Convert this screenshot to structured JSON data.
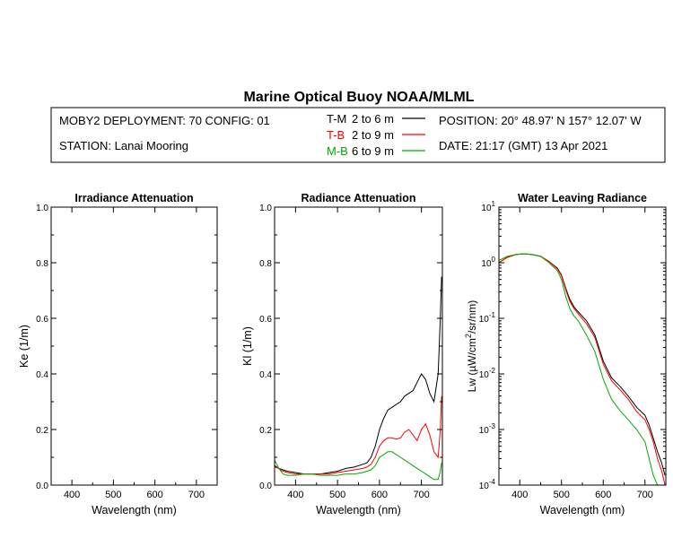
{
  "title": "Marine Optical Buoy NOAA/MLML",
  "info": {
    "deployment": "MOBY2 DEPLOYMENT: 70 CONFIG: 01",
    "station": "STATION: Lanai Mooring",
    "position": "POSITION: 20° 48.97' N   157° 12.07' W",
    "date": "DATE: 21:17 (GMT) 13 Apr 2021",
    "legend": [
      {
        "code": "T-M",
        "range": "2 to 6  m",
        "color": "#000000"
      },
      {
        "code": "T-B",
        "range": "2 to 9  m",
        "color": "#ff0000"
      },
      {
        "code": "M-B",
        "range": "6 to 9  m",
        "color": "#00aa00"
      }
    ]
  },
  "colors": {
    "tm": "#000000",
    "tb": "#ff0000",
    "mb": "#00aa00"
  },
  "chart_data": [
    {
      "type": "line",
      "title": "Irradiance Attenuation",
      "xlabel": "Wavelength (nm)",
      "ylabel": "Ke  (1/m)",
      "xlim": [
        350,
        750
      ],
      "ylim": [
        0,
        1.0
      ],
      "xticks": [
        "400",
        "500",
        "600",
        "700"
      ],
      "yticks": [
        "0.0",
        "0.2",
        "0.4",
        "0.6",
        "0.8",
        "1.0"
      ],
      "series": []
    },
    {
      "type": "line",
      "title": "Radiance Attenuation",
      "xlabel": "Wavelength (nm)",
      "ylabel": "Kl  (1/m)",
      "xlim": [
        350,
        750
      ],
      "ylim": [
        0,
        1.0
      ],
      "xticks": [
        "400",
        "500",
        "600",
        "700"
      ],
      "yticks": [
        "0.0",
        "0.2",
        "0.4",
        "0.6",
        "0.8",
        "1.0"
      ],
      "series": [
        {
          "name": "T-M",
          "x": [
            350,
            360,
            370,
            380,
            400,
            420,
            440,
            460,
            480,
            500,
            520,
            540,
            560,
            570,
            580,
            590,
            600,
            610,
            620,
            630,
            640,
            650,
            660,
            670,
            680,
            690,
            700,
            710,
            720,
            730,
            740,
            745,
            748
          ],
          "y": [
            0.07,
            0.06,
            0.055,
            0.05,
            0.045,
            0.04,
            0.04,
            0.04,
            0.045,
            0.05,
            0.06,
            0.065,
            0.075,
            0.08,
            0.1,
            0.14,
            0.2,
            0.24,
            0.27,
            0.28,
            0.29,
            0.3,
            0.32,
            0.33,
            0.34,
            0.37,
            0.4,
            0.38,
            0.33,
            0.3,
            0.4,
            0.6,
            0.75
          ]
        },
        {
          "name": "T-B",
          "x": [
            350,
            360,
            370,
            380,
            400,
            420,
            440,
            460,
            480,
            500,
            520,
            540,
            560,
            570,
            580,
            590,
            600,
            610,
            620,
            630,
            640,
            650,
            660,
            670,
            680,
            690,
            700,
            710,
            720,
            730,
            740,
            745,
            748
          ],
          "y": [
            0.065,
            0.06,
            0.05,
            0.045,
            0.04,
            0.04,
            0.04,
            0.04,
            0.04,
            0.045,
            0.05,
            0.055,
            0.06,
            0.065,
            0.075,
            0.1,
            0.14,
            0.16,
            0.17,
            0.17,
            0.165,
            0.17,
            0.19,
            0.2,
            0.18,
            0.16,
            0.2,
            0.22,
            0.18,
            0.12,
            0.1,
            0.2,
            0.32
          ]
        },
        {
          "name": "M-B",
          "x": [
            350,
            360,
            370,
            380,
            400,
            420,
            440,
            460,
            480,
            500,
            520,
            540,
            560,
            570,
            580,
            590,
            600,
            610,
            620,
            630,
            640,
            650,
            660,
            670,
            680,
            690,
            700,
            710,
            720,
            730,
            740,
            745,
            748
          ],
          "y": [
            0.09,
            0.06,
            0.04,
            0.035,
            0.035,
            0.04,
            0.04,
            0.035,
            0.035,
            0.035,
            0.04,
            0.04,
            0.045,
            0.05,
            0.055,
            0.07,
            0.1,
            0.11,
            0.12,
            0.12,
            0.11,
            0.1,
            0.09,
            0.08,
            0.07,
            0.06,
            0.05,
            0.04,
            0.03,
            0.02,
            0.02,
            0.05,
            0.08
          ]
        }
      ]
    },
    {
      "type": "line",
      "title": "Water Leaving Radiance",
      "xlabel": "Wavelength (nm)",
      "ylabel": "Lw  (µW/cm²/sr/nm)",
      "xlim": [
        350,
        750
      ],
      "ylim": [
        0.0001,
        10
      ],
      "yscale": "log",
      "xticks": [
        "400",
        "500",
        "600",
        "700"
      ],
      "yticks": [
        "10^-4",
        "10^-3",
        "10^-2",
        "10^-1",
        "10^0",
        "10^1"
      ],
      "series": [
        {
          "name": "T-M",
          "x": [
            350,
            370,
            390,
            410,
            430,
            450,
            470,
            490,
            500,
            510,
            520,
            530,
            540,
            560,
            580,
            600,
            620,
            640,
            660,
            680,
            700,
            710,
            720,
            730,
            740,
            748
          ],
          "y": [
            1.0,
            1.25,
            1.4,
            1.45,
            1.4,
            1.3,
            1.05,
            0.8,
            0.6,
            0.35,
            0.22,
            0.16,
            0.13,
            0.09,
            0.05,
            0.017,
            0.0085,
            0.006,
            0.004,
            0.0025,
            0.0018,
            0.0012,
            0.0007,
            0.0004,
            0.00025,
            0.00015
          ]
        },
        {
          "name": "T-B",
          "x": [
            350,
            370,
            390,
            410,
            430,
            450,
            470,
            490,
            500,
            510,
            520,
            530,
            540,
            560,
            580,
            600,
            620,
            640,
            660,
            680,
            700,
            710,
            720,
            730,
            740,
            748
          ],
          "y": [
            1.0,
            1.25,
            1.4,
            1.45,
            1.4,
            1.3,
            1.05,
            0.78,
            0.58,
            0.33,
            0.2,
            0.15,
            0.12,
            0.08,
            0.045,
            0.015,
            0.0075,
            0.0052,
            0.0035,
            0.0021,
            0.0015,
            0.001,
            0.0006,
            0.0003,
            0.00018,
            0.0001
          ]
        },
        {
          "name": "M-B",
          "x": [
            350,
            370,
            390,
            410,
            430,
            450,
            470,
            490,
            500,
            510,
            520,
            530,
            540,
            560,
            580,
            600,
            620,
            640,
            660,
            680,
            700,
            710,
            720,
            730,
            740,
            748
          ],
          "y": [
            1.1,
            1.3,
            1.4,
            1.45,
            1.4,
            1.3,
            1.0,
            0.72,
            0.5,
            0.25,
            0.15,
            0.11,
            0.09,
            0.05,
            0.025,
            0.008,
            0.0035,
            0.0022,
            0.0015,
            0.001,
            0.0006,
            0.0003,
            0.00015,
            0.0001,
            0.0001,
            0.0001
          ]
        }
      ]
    }
  ]
}
